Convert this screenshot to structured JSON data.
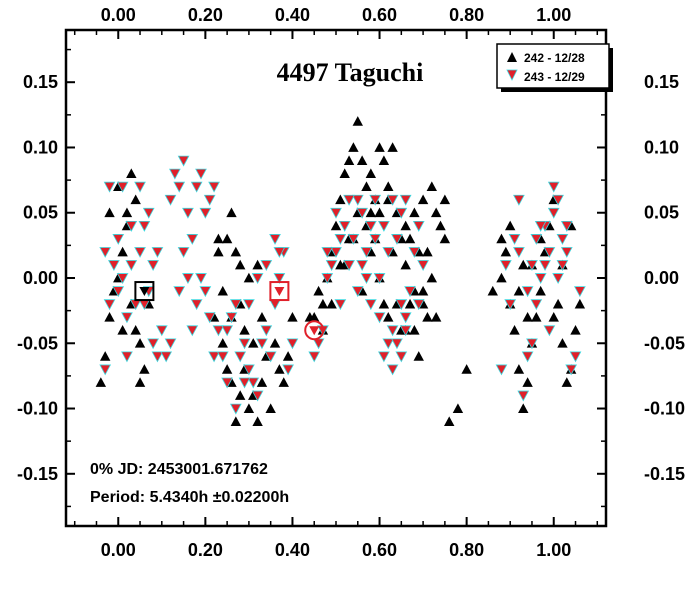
{
  "chart_data": {
    "type": "scatter",
    "title": "4497 Taguchi",
    "xlabel": "",
    "ylabel": "",
    "xlim": [
      -0.12,
      1.12
    ],
    "ylim": [
      0.19,
      -0.19
    ],
    "y_inverted": true,
    "x_ticks": [
      "0.00",
      "0.20",
      "0.40",
      "0.60",
      "0.80",
      "1.00"
    ],
    "x_tick_values": [
      0.0,
      0.2,
      0.4,
      0.6,
      0.8,
      1.0
    ],
    "y_ticks": [
      "-0.15",
      "-0.10",
      "-0.05",
      "0.00",
      "0.05",
      "0.10",
      "0.15"
    ],
    "y_tick_values": [
      -0.15,
      -0.1,
      -0.05,
      0.0,
      0.05,
      0.1,
      0.15
    ],
    "legend_position": "top-right",
    "info_lines": {
      "jd": "0% JD:  2453001.671762",
      "period": "Period: 5.4340h   ±0.02200h"
    },
    "series": [
      {
        "name": "242 - 12/28",
        "marker": "triangle-up",
        "color": "#000000",
        "points": [
          [
            -0.04,
            -0.08
          ],
          [
            -0.03,
            -0.06
          ],
          [
            -0.02,
            -0.03
          ],
          [
            -0.01,
            -0.01
          ],
          [
            0.0,
            0.0
          ],
          [
            0.01,
            0.02
          ],
          [
            0.02,
            0.04
          ],
          [
            0.03,
            -0.02
          ],
          [
            0.04,
            -0.04
          ],
          [
            0.05,
            -0.08
          ],
          [
            0.06,
            -0.07
          ],
          [
            0.07,
            -0.02
          ],
          [
            0.02,
            0.05
          ],
          [
            0.0,
            0.07
          ],
          [
            -0.02,
            0.05
          ],
          [
            0.03,
            0.08
          ],
          [
            0.04,
            0.06
          ],
          [
            0.05,
            -0.05
          ],
          [
            0.01,
            -0.04
          ],
          [
            0.22,
            -0.03
          ],
          [
            0.24,
            -0.05
          ],
          [
            0.25,
            -0.07
          ],
          [
            0.26,
            -0.08
          ],
          [
            0.27,
            -0.11
          ],
          [
            0.28,
            -0.09
          ],
          [
            0.29,
            -0.07
          ],
          [
            0.3,
            -0.1
          ],
          [
            0.31,
            -0.09
          ],
          [
            0.32,
            -0.11
          ],
          [
            0.33,
            -0.08
          ],
          [
            0.34,
            -0.06
          ],
          [
            0.35,
            -0.1
          ],
          [
            0.36,
            -0.05
          ],
          [
            0.37,
            -0.07
          ],
          [
            0.38,
            -0.08
          ],
          [
            0.39,
            -0.06
          ],
          [
            0.4,
            -0.03
          ],
          [
            0.33,
            -0.03
          ],
          [
            0.31,
            -0.05
          ],
          [
            0.29,
            -0.04
          ],
          [
            0.28,
            -0.02
          ],
          [
            0.26,
            -0.03
          ],
          [
            0.24,
            -0.01
          ],
          [
            0.23,
            0.02
          ],
          [
            0.25,
            0.03
          ],
          [
            0.27,
            0.02
          ],
          [
            0.28,
            0.01
          ],
          [
            0.3,
            0.0
          ],
          [
            0.32,
            0.01
          ],
          [
            0.26,
            0.05
          ],
          [
            0.23,
            0.03
          ],
          [
            0.45,
            -0.03
          ],
          [
            0.47,
            -0.02
          ],
          [
            0.48,
            0.0
          ],
          [
            0.49,
            0.02
          ],
          [
            0.5,
            0.04
          ],
          [
            0.51,
            0.06
          ],
          [
            0.52,
            0.08
          ],
          [
            0.53,
            0.09
          ],
          [
            0.54,
            0.1
          ],
          [
            0.55,
            0.12
          ],
          [
            0.56,
            0.09
          ],
          [
            0.57,
            0.07
          ],
          [
            0.58,
            0.08
          ],
          [
            0.59,
            0.06
          ],
          [
            0.6,
            0.1
          ],
          [
            0.61,
            0.09
          ],
          [
            0.62,
            0.07
          ],
          [
            0.63,
            0.1
          ],
          [
            0.64,
            0.05
          ],
          [
            0.65,
            0.03
          ],
          [
            0.66,
            0.01
          ],
          [
            0.67,
            -0.02
          ],
          [
            0.68,
            -0.04
          ],
          [
            0.69,
            -0.06
          ],
          [
            0.7,
            -0.01
          ],
          [
            0.71,
            0.02
          ],
          [
            0.72,
            0.0
          ],
          [
            0.73,
            -0.03
          ],
          [
            0.74,
            0.04
          ],
          [
            0.75,
            0.06
          ],
          [
            0.76,
            -0.11
          ],
          [
            0.78,
            -0.1
          ],
          [
            0.8,
            -0.07
          ],
          [
            0.52,
            0.01
          ],
          [
            0.54,
            0.03
          ],
          [
            0.56,
            -0.01
          ],
          [
            0.58,
            0.02
          ],
          [
            0.6,
            0.0
          ],
          [
            0.62,
            -0.03
          ],
          [
            0.64,
            -0.02
          ],
          [
            0.66,
            0.04
          ],
          [
            0.68,
            0.05
          ],
          [
            0.7,
            0.06
          ],
          [
            0.72,
            0.07
          ],
          [
            0.55,
            0.05
          ],
          [
            0.57,
            0.04
          ],
          [
            0.59,
            0.03
          ],
          [
            0.61,
            -0.02
          ],
          [
            0.63,
            0.02
          ],
          [
            0.65,
            -0.04
          ],
          [
            0.67,
            0.03
          ],
          [
            0.69,
            0.02
          ],
          [
            0.71,
            -0.03
          ],
          [
            0.73,
            0.05
          ],
          [
            0.75,
            0.03
          ],
          [
            0.62,
            0.06
          ],
          [
            0.6,
            0.05
          ],
          [
            0.58,
            0.05
          ],
          [
            0.53,
            0.03
          ],
          [
            0.51,
            0.01
          ],
          [
            0.49,
            -0.02
          ],
          [
            0.47,
            -0.04
          ],
          [
            0.44,
            -0.03
          ],
          [
            0.46,
            -0.01
          ],
          [
            0.66,
            -0.04
          ],
          [
            0.68,
            -0.01
          ],
          [
            0.7,
            -0.02
          ],
          [
            0.86,
            -0.01
          ],
          [
            0.88,
            0.0
          ],
          [
            0.89,
            0.02
          ],
          [
            0.9,
            -0.02
          ],
          [
            0.91,
            -0.04
          ],
          [
            0.92,
            -0.07
          ],
          [
            0.93,
            -0.1
          ],
          [
            0.94,
            -0.08
          ],
          [
            0.95,
            -0.05
          ],
          [
            0.96,
            -0.03
          ],
          [
            0.97,
            -0.01
          ],
          [
            0.98,
            0.02
          ],
          [
            0.99,
            0.04
          ],
          [
            1.0,
            0.06
          ],
          [
            1.01,
            -0.02
          ],
          [
            1.02,
            -0.05
          ],
          [
            1.03,
            -0.08
          ],
          [
            1.04,
            -0.07
          ],
          [
            1.05,
            -0.04
          ],
          [
            1.06,
            -0.02
          ],
          [
            0.88,
            0.03
          ],
          [
            0.9,
            0.04
          ],
          [
            0.93,
            0.01
          ],
          [
            0.95,
            0.01
          ],
          [
            0.97,
            0.03
          ],
          [
            1.0,
            -0.03
          ],
          [
            1.02,
            0.01
          ],
          [
            1.04,
            0.04
          ],
          [
            0.92,
            -0.01
          ],
          [
            0.94,
            -0.03
          ]
        ]
      },
      {
        "name": "243 - 12/29",
        "marker": "triangle-down",
        "color": "#e0202a",
        "points": [
          [
            -0.03,
            -0.07
          ],
          [
            -0.02,
            -0.02
          ],
          [
            -0.01,
            0.01
          ],
          [
            0.0,
            -0.01
          ],
          [
            0.01,
            0.0
          ],
          [
            0.02,
            -0.03
          ],
          [
            0.03,
            0.01
          ],
          [
            0.04,
            -0.02
          ],
          [
            0.05,
            0.02
          ],
          [
            -0.03,
            0.02
          ],
          [
            0.0,
            0.03
          ],
          [
            0.01,
            0.07
          ],
          [
            0.03,
            0.04
          ],
          [
            0.06,
            -0.02
          ],
          [
            0.07,
            -0.01
          ],
          [
            0.08,
            -0.05
          ],
          [
            0.09,
            -0.06
          ],
          [
            0.1,
            -0.04
          ],
          [
            0.08,
            0.01
          ],
          [
            0.09,
            0.02
          ],
          [
            0.07,
            0.05
          ],
          [
            0.06,
            0.04
          ],
          [
            0.05,
            0.07
          ],
          [
            0.02,
            -0.06
          ],
          [
            -0.02,
            0.07
          ],
          [
            0.11,
            -0.06
          ],
          [
            0.12,
            0.06
          ],
          [
            0.13,
            0.08
          ],
          [
            0.14,
            0.07
          ],
          [
            0.15,
            0.09
          ],
          [
            0.16,
            0.05
          ],
          [
            0.17,
            0.03
          ],
          [
            0.18,
            0.07
          ],
          [
            0.19,
            0.08
          ],
          [
            0.2,
            0.05
          ],
          [
            0.21,
            0.06
          ],
          [
            0.22,
            0.07
          ],
          [
            0.18,
            -0.02
          ],
          [
            0.19,
            0.0
          ],
          [
            0.2,
            -0.01
          ],
          [
            0.21,
            -0.03
          ],
          [
            0.22,
            -0.06
          ],
          [
            0.23,
            -0.04
          ],
          [
            0.24,
            -0.06
          ],
          [
            0.25,
            -0.04
          ],
          [
            0.26,
            -0.03
          ],
          [
            0.27,
            -0.02
          ],
          [
            0.28,
            -0.06
          ],
          [
            0.29,
            -0.05
          ],
          [
            0.3,
            -0.07
          ],
          [
            0.31,
            -0.08
          ],
          [
            0.32,
            -0.09
          ],
          [
            0.33,
            -0.05
          ],
          [
            0.34,
            -0.04
          ],
          [
            0.35,
            -0.06
          ],
          [
            0.36,
            -0.02
          ],
          [
            0.37,
            0.0
          ],
          [
            0.38,
            0.02
          ],
          [
            0.39,
            -0.07
          ],
          [
            0.4,
            -0.05
          ],
          [
            0.25,
            -0.08
          ],
          [
            0.27,
            -0.1
          ],
          [
            0.29,
            -0.08
          ],
          [
            0.3,
            -0.02
          ],
          [
            0.32,
            0.0
          ],
          [
            0.34,
            0.01
          ],
          [
            0.36,
            0.03
          ],
          [
            0.37,
            0.02
          ],
          [
            0.15,
            0.02
          ],
          [
            0.16,
            0.0
          ],
          [
            0.14,
            -0.01
          ],
          [
            0.17,
            -0.04
          ],
          [
            0.12,
            -0.05
          ],
          [
            0.45,
            -0.06
          ],
          [
            0.46,
            -0.05
          ],
          [
            0.47,
            -0.04
          ],
          [
            0.48,
            0.0
          ],
          [
            0.49,
            0.01
          ],
          [
            0.5,
            0.02
          ],
          [
            0.51,
            0.03
          ],
          [
            0.52,
            0.04
          ],
          [
            0.53,
            0.01
          ],
          [
            0.54,
            0.03
          ],
          [
            0.55,
            0.06
          ],
          [
            0.56,
            0.05
          ],
          [
            0.57,
            0.02
          ],
          [
            0.58,
            0.04
          ],
          [
            0.59,
            0.03
          ],
          [
            0.6,
            -0.03
          ],
          [
            0.61,
            -0.06
          ],
          [
            0.62,
            -0.05
          ],
          [
            0.63,
            -0.04
          ],
          [
            0.64,
            -0.05
          ],
          [
            0.65,
            -0.02
          ],
          [
            0.66,
            -0.03
          ],
          [
            0.67,
            -0.01
          ],
          [
            0.68,
            0.02
          ],
          [
            0.69,
            0.04
          ],
          [
            0.7,
            0.01
          ],
          [
            0.57,
            0.0
          ],
          [
            0.6,
            0.0
          ],
          [
            0.62,
            0.02
          ],
          [
            0.64,
            0.03
          ],
          [
            0.66,
            0.06
          ],
          [
            0.5,
            0.05
          ],
          [
            0.53,
            0.06
          ],
          [
            0.56,
            0.01
          ],
          [
            0.59,
            0.06
          ],
          [
            0.61,
            0.04
          ],
          [
            0.63,
            0.06
          ],
          [
            0.65,
            0.05
          ],
          [
            0.48,
            0.02
          ],
          [
            0.51,
            -0.02
          ],
          [
            0.55,
            -0.01
          ],
          [
            0.58,
            -0.02
          ],
          [
            0.63,
            -0.07
          ],
          [
            0.65,
            -0.06
          ],
          [
            0.66,
            -0.04
          ],
          [
            0.69,
            -0.02
          ],
          [
            0.88,
            -0.07
          ],
          [
            0.89,
            0.01
          ],
          [
            0.9,
            -0.02
          ],
          [
            0.91,
            0.03
          ],
          [
            0.92,
            0.06
          ],
          [
            0.93,
            -0.09
          ],
          [
            0.94,
            -0.06
          ],
          [
            0.95,
            -0.05
          ],
          [
            0.96,
            -0.02
          ],
          [
            0.97,
            0.0
          ],
          [
            0.98,
            0.01
          ],
          [
            0.99,
            -0.04
          ],
          [
            1.0,
            0.07
          ],
          [
            1.01,
            0.06
          ],
          [
            1.02,
            0.01
          ],
          [
            1.03,
            0.02
          ],
          [
            1.04,
            -0.07
          ],
          [
            1.05,
            -0.06
          ],
          [
            1.06,
            -0.01
          ],
          [
            0.92,
            0.02
          ],
          [
            0.94,
            -0.01
          ],
          [
            0.96,
            0.03
          ],
          [
            0.98,
            0.04
          ],
          [
            1.0,
            0.05
          ],
          [
            1.02,
            0.03
          ],
          [
            0.95,
            0.01
          ],
          [
            0.97,
            0.04
          ],
          [
            0.99,
            0.02
          ],
          [
            1.01,
            0.0
          ],
          [
            1.03,
            0.04
          ]
        ]
      }
    ],
    "highlighted": [
      {
        "x": 0.06,
        "y": -0.01,
        "shape": "square",
        "color": "#000000"
      },
      {
        "x": 0.37,
        "y": -0.01,
        "shape": "square",
        "color": "#e0202a"
      },
      {
        "x": 0.45,
        "y": -0.04,
        "shape": "circle",
        "color": "#e0202a"
      }
    ]
  }
}
